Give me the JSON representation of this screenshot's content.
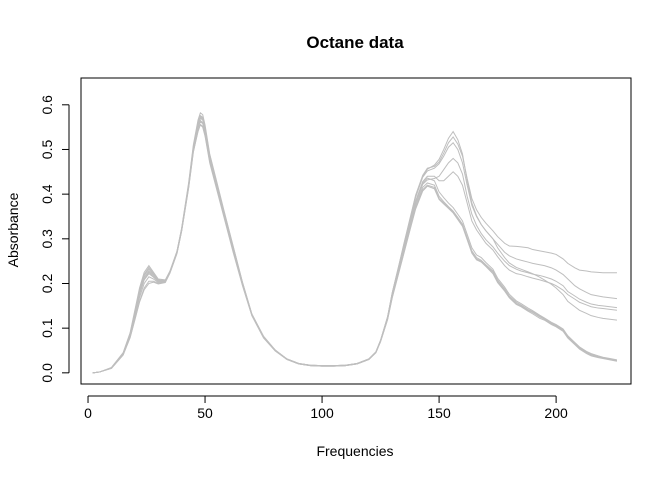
{
  "chart_data": {
    "type": "line",
    "title": "Octane data",
    "xlabel": "Frequencies",
    "ylabel": "Absorbance",
    "xlim": [
      -3,
      232
    ],
    "ylim": [
      -0.025,
      0.66
    ],
    "x_ticks": [
      0,
      50,
      100,
      150,
      200
    ],
    "y_ticks": [
      0.0,
      0.1,
      0.2,
      0.3,
      0.4,
      0.5,
      0.6
    ],
    "x_tick_labels": [
      "0",
      "50",
      "100",
      "150",
      "200"
    ],
    "y_tick_labels": [
      "0.0",
      "0.1",
      "0.2",
      "0.3",
      "0.4",
      "0.5",
      "0.6"
    ],
    "line_color": "#BEBEBE",
    "grid": false,
    "x": [
      2,
      5,
      10,
      15,
      18,
      20,
      22,
      24,
      26,
      28,
      30,
      33,
      35,
      38,
      40,
      43,
      45,
      47,
      48,
      49,
      50,
      52,
      55,
      58,
      62,
      66,
      70,
      75,
      80,
      85,
      90,
      95,
      100,
      105,
      110,
      115,
      120,
      123,
      125,
      128,
      130,
      133,
      135,
      138,
      140,
      143,
      145,
      148,
      150,
      152,
      154,
      156,
      158,
      160,
      162,
      164,
      166,
      168,
      170,
      173,
      175,
      178,
      180,
      183,
      185,
      188,
      190,
      193,
      195,
      198,
      200,
      203,
      205,
      208,
      210,
      213,
      215,
      218,
      220,
      223,
      226
    ],
    "series": [
      {
        "values": [
          0.0,
          0.002,
          0.01,
          0.04,
          0.08,
          0.12,
          0.16,
          0.19,
          0.205,
          0.205,
          0.2,
          0.203,
          0.225,
          0.27,
          0.32,
          0.42,
          0.5,
          0.55,
          0.565,
          0.56,
          0.54,
          0.48,
          0.42,
          0.36,
          0.28,
          0.2,
          0.13,
          0.08,
          0.05,
          0.03,
          0.02,
          0.016,
          0.015,
          0.015,
          0.016,
          0.02,
          0.03,
          0.045,
          0.07,
          0.12,
          0.17,
          0.23,
          0.27,
          0.33,
          0.37,
          0.41,
          0.42,
          0.415,
          0.39,
          0.38,
          0.37,
          0.36,
          0.345,
          0.33,
          0.3,
          0.27,
          0.255,
          0.25,
          0.24,
          0.225,
          0.205,
          0.185,
          0.17,
          0.155,
          0.15,
          0.14,
          0.135,
          0.125,
          0.12,
          0.11,
          0.105,
          0.095,
          0.08,
          0.065,
          0.055,
          0.045,
          0.04,
          0.035,
          0.033,
          0.03,
          0.027
        ]
      },
      {
        "values": [
          0.0,
          0.002,
          0.011,
          0.042,
          0.085,
          0.13,
          0.175,
          0.21,
          0.225,
          0.215,
          0.205,
          0.205,
          0.225,
          0.268,
          0.318,
          0.415,
          0.495,
          0.54,
          0.555,
          0.55,
          0.53,
          0.47,
          0.41,
          0.35,
          0.27,
          0.195,
          0.128,
          0.078,
          0.049,
          0.03,
          0.02,
          0.016,
          0.015,
          0.015,
          0.016,
          0.02,
          0.03,
          0.046,
          0.072,
          0.122,
          0.172,
          0.233,
          0.275,
          0.335,
          0.375,
          0.415,
          0.425,
          0.42,
          0.395,
          0.383,
          0.372,
          0.362,
          0.348,
          0.333,
          0.303,
          0.273,
          0.258,
          0.252,
          0.242,
          0.228,
          0.208,
          0.188,
          0.172,
          0.158,
          0.152,
          0.142,
          0.137,
          0.127,
          0.121,
          0.111,
          0.106,
          0.096,
          0.081,
          0.066,
          0.056,
          0.046,
          0.041,
          0.036,
          0.034,
          0.031,
          0.028
        ]
      },
      {
        "values": [
          0.0,
          0.002,
          0.012,
          0.045,
          0.09,
          0.14,
          0.19,
          0.225,
          0.24,
          0.225,
          0.21,
          0.208,
          0.228,
          0.272,
          0.322,
          0.422,
          0.505,
          0.56,
          0.575,
          0.57,
          0.548,
          0.485,
          0.425,
          0.362,
          0.282,
          0.202,
          0.131,
          0.081,
          0.051,
          0.031,
          0.021,
          0.017,
          0.016,
          0.016,
          0.017,
          0.021,
          0.031,
          0.047,
          0.073,
          0.125,
          0.178,
          0.24,
          0.283,
          0.345,
          0.385,
          0.428,
          0.44,
          0.44,
          0.43,
          0.43,
          0.44,
          0.45,
          0.44,
          0.42,
          0.38,
          0.34,
          0.32,
          0.305,
          0.29,
          0.275,
          0.26,
          0.24,
          0.23,
          0.222,
          0.22,
          0.215,
          0.212,
          0.208,
          0.205,
          0.2,
          0.195,
          0.185,
          0.175,
          0.165,
          0.158,
          0.152,
          0.148,
          0.145,
          0.144,
          0.142,
          0.14
        ]
      },
      {
        "values": [
          0.0,
          0.002,
          0.011,
          0.043,
          0.088,
          0.135,
          0.182,
          0.218,
          0.232,
          0.22,
          0.207,
          0.206,
          0.226,
          0.27,
          0.32,
          0.418,
          0.5,
          0.548,
          0.562,
          0.558,
          0.538,
          0.478,
          0.418,
          0.356,
          0.276,
          0.198,
          0.13,
          0.08,
          0.05,
          0.031,
          0.021,
          0.017,
          0.016,
          0.016,
          0.017,
          0.021,
          0.031,
          0.046,
          0.072,
          0.123,
          0.175,
          0.236,
          0.279,
          0.34,
          0.38,
          0.422,
          0.432,
          0.435,
          0.44,
          0.455,
          0.47,
          0.48,
          0.47,
          0.445,
          0.395,
          0.355,
          0.33,
          0.312,
          0.298,
          0.282,
          0.268,
          0.25,
          0.24,
          0.232,
          0.228,
          0.224,
          0.221,
          0.218,
          0.215,
          0.21,
          0.205,
          0.195,
          0.182,
          0.172,
          0.165,
          0.158,
          0.154,
          0.151,
          0.15,
          0.148,
          0.146
        ]
      },
      {
        "values": [
          0.0,
          0.002,
          0.01,
          0.041,
          0.082,
          0.125,
          0.168,
          0.2,
          0.215,
          0.21,
          0.202,
          0.204,
          0.224,
          0.268,
          0.318,
          0.418,
          0.5,
          0.555,
          0.572,
          0.568,
          0.546,
          0.484,
          0.422,
          0.36,
          0.28,
          0.2,
          0.13,
          0.08,
          0.05,
          0.03,
          0.02,
          0.016,
          0.015,
          0.015,
          0.016,
          0.02,
          0.03,
          0.046,
          0.071,
          0.124,
          0.178,
          0.242,
          0.286,
          0.35,
          0.393,
          0.438,
          0.452,
          0.458,
          0.468,
          0.485,
          0.505,
          0.515,
          0.5,
          0.47,
          0.42,
          0.375,
          0.35,
          0.332,
          0.318,
          0.3,
          0.288,
          0.27,
          0.262,
          0.255,
          0.252,
          0.248,
          0.245,
          0.242,
          0.24,
          0.235,
          0.23,
          0.22,
          0.21,
          0.195,
          0.188,
          0.18,
          0.175,
          0.172,
          0.17,
          0.168,
          0.166
        ]
      },
      {
        "values": [
          0.0,
          0.002,
          0.011,
          0.044,
          0.088,
          0.136,
          0.184,
          0.22,
          0.236,
          0.222,
          0.208,
          0.206,
          0.226,
          0.272,
          0.324,
          0.426,
          0.51,
          0.566,
          0.582,
          0.578,
          0.555,
          0.49,
          0.428,
          0.365,
          0.284,
          0.203,
          0.132,
          0.082,
          0.051,
          0.031,
          0.021,
          0.017,
          0.016,
          0.016,
          0.017,
          0.021,
          0.031,
          0.047,
          0.073,
          0.126,
          0.18,
          0.245,
          0.29,
          0.355,
          0.398,
          0.442,
          0.458,
          0.462,
          0.472,
          0.492,
          0.515,
          0.528,
          0.512,
          0.485,
          0.435,
          0.39,
          0.365,
          0.348,
          0.335,
          0.318,
          0.305,
          0.29,
          0.284,
          0.283,
          0.282,
          0.28,
          0.276,
          0.273,
          0.271,
          0.268,
          0.265,
          0.255,
          0.245,
          0.235,
          0.23,
          0.228,
          0.226,
          0.225,
          0.224,
          0.224,
          0.224
        ]
      },
      {
        "values": [
          0.0,
          0.002,
          0.011,
          0.042,
          0.085,
          0.13,
          0.176,
          0.208,
          0.222,
          0.214,
          0.204,
          0.205,
          0.225,
          0.27,
          0.321,
          0.422,
          0.505,
          0.56,
          0.576,
          0.572,
          0.55,
          0.487,
          0.425,
          0.363,
          0.282,
          0.201,
          0.131,
          0.081,
          0.05,
          0.031,
          0.021,
          0.017,
          0.016,
          0.016,
          0.017,
          0.021,
          0.031,
          0.046,
          0.072,
          0.125,
          0.179,
          0.244,
          0.288,
          0.352,
          0.396,
          0.44,
          0.456,
          0.465,
          0.478,
          0.5,
          0.525,
          0.54,
          0.522,
          0.49,
          0.43,
          0.38,
          0.352,
          0.332,
          0.318,
          0.3,
          0.28,
          0.258,
          0.246,
          0.236,
          0.232,
          0.226,
          0.222,
          0.214,
          0.208,
          0.198,
          0.19,
          0.175,
          0.16,
          0.148,
          0.14,
          0.133,
          0.128,
          0.124,
          0.122,
          0.12,
          0.118
        ]
      },
      {
        "values": [
          0.0,
          0.002,
          0.01,
          0.04,
          0.079,
          0.118,
          0.158,
          0.186,
          0.2,
          0.203,
          0.199,
          0.202,
          0.223,
          0.267,
          0.317,
          0.414,
          0.494,
          0.543,
          0.556,
          0.552,
          0.532,
          0.474,
          0.414,
          0.354,
          0.275,
          0.197,
          0.129,
          0.079,
          0.049,
          0.03,
          0.02,
          0.016,
          0.015,
          0.015,
          0.016,
          0.02,
          0.03,
          0.045,
          0.07,
          0.119,
          0.168,
          0.228,
          0.268,
          0.328,
          0.367,
          0.407,
          0.418,
          0.412,
          0.388,
          0.378,
          0.368,
          0.358,
          0.343,
          0.328,
          0.298,
          0.268,
          0.253,
          0.248,
          0.238,
          0.222,
          0.202,
          0.183,
          0.168,
          0.153,
          0.148,
          0.138,
          0.132,
          0.122,
          0.118,
          0.108,
          0.103,
          0.093,
          0.078,
          0.063,
          0.053,
          0.043,
          0.038,
          0.034,
          0.032,
          0.029,
          0.026
        ]
      },
      {
        "values": [
          0.0,
          0.002,
          0.011,
          0.043,
          0.087,
          0.133,
          0.18,
          0.214,
          0.228,
          0.218,
          0.206,
          0.206,
          0.226,
          0.271,
          0.322,
          0.42,
          0.503,
          0.556,
          0.57,
          0.566,
          0.545,
          0.482,
          0.42,
          0.358,
          0.278,
          0.199,
          0.13,
          0.08,
          0.05,
          0.031,
          0.021,
          0.017,
          0.016,
          0.016,
          0.017,
          0.021,
          0.031,
          0.046,
          0.072,
          0.124,
          0.176,
          0.238,
          0.281,
          0.343,
          0.383,
          0.425,
          0.436,
          0.43,
          0.405,
          0.392,
          0.38,
          0.37,
          0.355,
          0.34,
          0.31,
          0.28,
          0.264,
          0.258,
          0.247,
          0.232,
          0.212,
          0.192,
          0.176,
          0.161,
          0.155,
          0.145,
          0.139,
          0.129,
          0.123,
          0.113,
          0.108,
          0.098,
          0.083,
          0.068,
          0.058,
          0.048,
          0.043,
          0.038,
          0.035,
          0.032,
          0.029
        ]
      }
    ]
  }
}
